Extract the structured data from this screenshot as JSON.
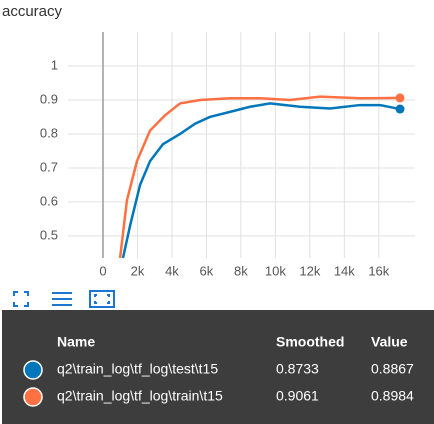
{
  "chart_data": {
    "type": "line",
    "title": "accuracy",
    "series": [
      {
        "name": "q2\\train_log\\tf_log\\test\\t15",
        "color": "#0077bb",
        "x": [
          1160,
          1570,
          2150,
          2730,
          3480,
          4470,
          5340,
          6200,
          7370,
          8530,
          9690,
          11430,
          13170,
          14900,
          16070,
          17230
        ],
        "values": [
          0.435,
          0.53,
          0.65,
          0.72,
          0.77,
          0.8,
          0.83,
          0.85,
          0.865,
          0.88,
          0.89,
          0.88,
          0.875,
          0.885,
          0.885,
          0.8733
        ]
      },
      {
        "name": "q2\\train_log\\tf_log\\train\\t15",
        "color": "#ff7043",
        "x": [
          990,
          1390,
          1970,
          2730,
          3600,
          4470,
          5630,
          7370,
          9110,
          10850,
          12590,
          14900,
          17230
        ],
        "values": [
          0.435,
          0.605,
          0.72,
          0.81,
          0.855,
          0.89,
          0.9,
          0.905,
          0.905,
          0.9,
          0.91,
          0.905,
          0.9061
        ]
      }
    ],
    "xlim": [
      -2030,
      18100
    ],
    "xticks": [
      0,
      {
        "value": 2000,
        "label": "2k"
      },
      {
        "value": 4000,
        "label": "4k"
      },
      {
        "value": 6000,
        "label": "6k"
      },
      {
        "value": 8000,
        "label": "8k"
      },
      {
        "value": 10000,
        "label": "10k"
      },
      {
        "value": 12000,
        "label": "12k"
      },
      {
        "value": 14000,
        "label": "14k"
      },
      {
        "value": 16000,
        "label": "16k"
      }
    ],
    "ylim": [
      0.435,
      1.1
    ],
    "yticks": [
      0.5,
      0.6,
      0.7,
      0.8,
      0.9,
      1
    ],
    "grid": true
  },
  "tooltip": {
    "headers": [
      "Name",
      "Smoothed",
      "Value"
    ],
    "rows": [
      [
        "q2\\train_log\\tf_log\\test\\t15",
        "0.8733",
        "0.8867"
      ],
      [
        "q2\\train_log\\tf_log\\train\\t15",
        "0.9061",
        "0.8984"
      ]
    ]
  }
}
